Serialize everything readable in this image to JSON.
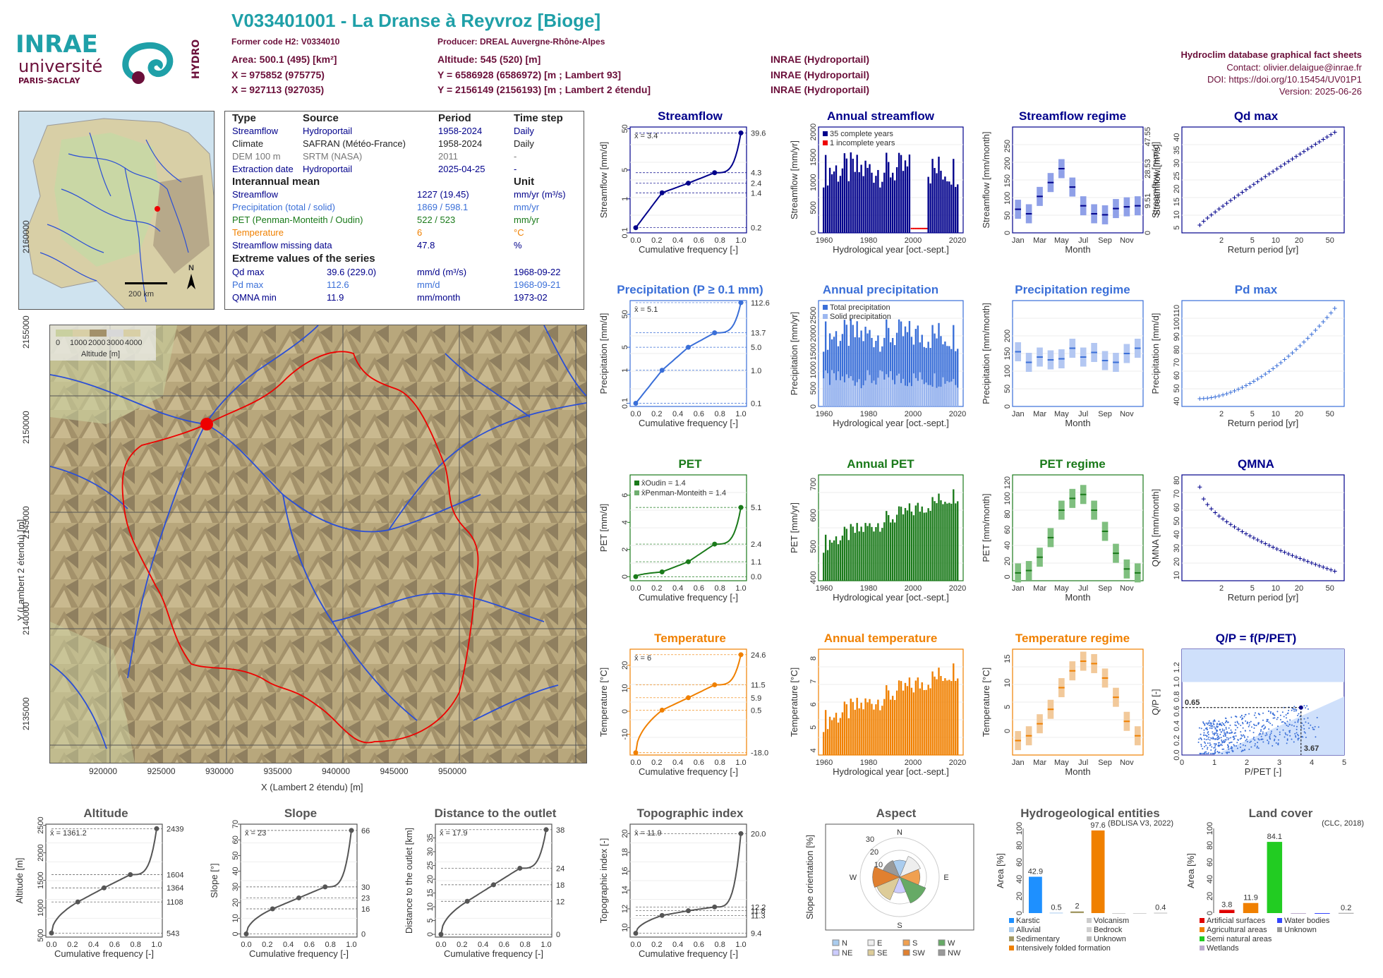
{
  "header": {
    "title": "V033401001 - La Dranse à Reyvroz [Bioge]",
    "former_code": "Former code H2: V0334010",
    "producer": "Producer: DREAL Auvergne-Rhône-Alpes",
    "area": "Area: 500.1 (495) [km²]",
    "altitude": "Altitude: 545 (520) [m]",
    "x93": "X = 975852 (975775)",
    "y93": "Y = 6586928 (6586972) [m ; Lambert 93]",
    "x2e": "X = 927113 (927035)",
    "y2e": "Y = 2156149 (2156193) [m ; Lambert 2 étendu]",
    "src1": "INRAE (Hydroportail)",
    "src2": "INRAE (Hydroportail)",
    "src3": "INRAE (Hydroportail)",
    "db": "Hydroclim database graphical fact sheets",
    "contact": "Contact: olivier.delaigue@inrae.fr",
    "doi": "DOI: https://doi.org/10.15454/UV01P1",
    "version": "Version: 2025-06-26"
  },
  "logos": {
    "inrae": "INRAE",
    "universite": "université",
    "paris_saclay": "PARIS-SACLAY",
    "hydro": "HYDRO"
  },
  "colors": {
    "streamflow": "#00008b",
    "precip": "#3a6fd8",
    "pet": "#1a7a1a",
    "temp": "#f08000",
    "maroon": "#6b0f3a",
    "teal": "#1fa0a8",
    "grey": "#555555"
  },
  "info": {
    "h_type": "Type",
    "h_source": "Source",
    "h_period": "Period",
    "h_step": "Time step",
    "rows": [
      {
        "type": "Streamflow",
        "source": "Hydroportail",
        "period": "1958-2024",
        "step": "Daily",
        "color": "#00008b"
      },
      {
        "type": "Climate",
        "source": "SAFRAN (Météo-France)",
        "period": "1958-2024",
        "step": "Daily",
        "color": "#222222"
      },
      {
        "type": "DEM 100 m",
        "source": "SRTM (NASA)",
        "period": "2011",
        "step": "-",
        "color": "#777777"
      },
      {
        "type": "Extraction date",
        "source": "Hydroportail",
        "period": "2025-04-25",
        "step": "-",
        "color": "#00008b"
      }
    ],
    "h_inter": "Interannual mean",
    "h_unit": "Unit",
    "inter": [
      {
        "name": "Streamflow",
        "value": "1227 (19.45)",
        "unit": "mm/yr (m³/s)",
        "color": "#00008b"
      },
      {
        "name": "Precipitation (total / solid)",
        "value": "1869 / 598.1",
        "unit": "mm/yr",
        "color": "#3a6fd8"
      },
      {
        "name": "PET (Penman-Monteith / Oudin)",
        "value": "522 / 523",
        "unit": "mm/yr",
        "color": "#1a7a1a"
      },
      {
        "name": "Temperature",
        "value": "6",
        "unit": "°C",
        "color": "#f08000"
      },
      {
        "name": "Streamflow missing data",
        "value": "47.8",
        "unit": "%",
        "color": "#00008b"
      }
    ],
    "h_extreme": "Extreme values of the series",
    "extreme": [
      {
        "name": "Qd max",
        "value": "39.6 (229.0)",
        "unit": "mm/d (m³/s)",
        "date": "1968-09-22",
        "color": "#00008b"
      },
      {
        "name": "Pd max",
        "value": "112.6",
        "unit": "mm/d",
        "date": "1968-09-21",
        "color": "#3a6fd8"
      },
      {
        "name": "QMNA min",
        "value": "11.9",
        "unit": "mm/month",
        "date": "1973-02",
        "color": "#00008b"
      }
    ]
  },
  "france_map": {
    "scale": "200 km",
    "north": "N"
  },
  "basin_map": {
    "legend_title": "Altitude [m]",
    "legend_ticks": [
      "0",
      "1000",
      "2000",
      "3000",
      "4000"
    ],
    "xlabel": "X (Lambert 2 étendu) [m]",
    "ylabel": "Y (Lambert 2 étendu) [m]",
    "xticks": [
      "920000",
      "925000",
      "930000",
      "935000",
      "940000",
      "945000",
      "950000"
    ],
    "yticks": [
      "2135000",
      "2140000",
      "2145000",
      "2150000",
      "2155000",
      "2160000"
    ]
  },
  "chart_data": [
    {
      "id": "streamflow_cdf",
      "type": "line",
      "title": "Streamflow",
      "xlabel": "Cumulative frequency [-]",
      "ylabel": "Streamflow [mm/d]",
      "mean_label": "x̄ = 3.4",
      "scale": "log",
      "ylim": [
        0.15,
        55
      ],
      "yticks": [
        "0.1",
        "1",
        "5",
        "50"
      ],
      "right_labels": [
        "39.6",
        "4.3",
        "2.4",
        "1.4",
        "0.2"
      ],
      "right_values": [
        39.6,
        4.3,
        2.4,
        1.4,
        0.2
      ],
      "points": [
        [
          0,
          0.2
        ],
        [
          0.25,
          1.4
        ],
        [
          0.5,
          2.4
        ],
        [
          0.75,
          4.3
        ],
        [
          1,
          39.6
        ]
      ],
      "color": "#00008b"
    },
    {
      "id": "annual_streamflow",
      "type": "bar",
      "title": "Annual streamflow",
      "xlabel": "Hydrological year [oct.-sept.]",
      "ylabel": "Streamflow [mm/yr]",
      "ylim": [
        0,
        2100
      ],
      "yticks": [
        "0",
        "500",
        "1000",
        "1500",
        "2000"
      ],
      "legend": [
        "35 complete years",
        "1 incomplete years"
      ],
      "color": "#00008b"
    },
    {
      "id": "streamflow_regime",
      "type": "box",
      "title": "Streamflow regime",
      "xlabel": "Month",
      "ylabel": "Streamflow [mm/month]",
      "right_ylabel": "Streamflow [m³/s]",
      "ylim": [
        0,
        305
      ],
      "yticks": [
        "0",
        "50",
        "100",
        "150",
        "200",
        "250"
      ],
      "right_ticks": [
        "0",
        "9.51",
        "28.53",
        "47.55"
      ],
      "months": [
        "Jan",
        "Mar",
        "May",
        "Jul",
        "Sep",
        "Nov"
      ],
      "medians": [
        68,
        55,
        105,
        145,
        185,
        132,
        78,
        55,
        52,
        70,
        75,
        78
      ],
      "color": "#00008b"
    },
    {
      "id": "qd_max",
      "type": "scatter",
      "title": "Qd max",
      "xlabel": "Return period [yr]",
      "ylabel": "Streamflow [mm/d]",
      "yticks": [
        "5",
        "10",
        "15",
        "20",
        "25",
        "30",
        "35",
        "40"
      ],
      "xticks": [
        "2",
        "5",
        "10",
        "20",
        "50"
      ],
      "ylim": [
        3,
        44
      ],
      "color": "#00008b"
    },
    {
      "id": "precip_cdf",
      "type": "line",
      "title": "Precipitation (P ≥ 0.1 mm)",
      "xlabel": "Cumulative frequency [-]",
      "ylabel": "Precipitation [mm/d]",
      "mean_label": "x̄ = 5.1",
      "scale": "log",
      "ylim": [
        0.08,
        130
      ],
      "yticks": [
        "0.1",
        "1",
        "5",
        "50"
      ],
      "right_labels": [
        "112.6",
        "13.7",
        "5.0",
        "1.0",
        "0.1"
      ],
      "right_values": [
        112.6,
        13.7,
        5.0,
        1.0,
        0.1
      ],
      "points": [
        [
          0,
          0.1
        ],
        [
          0.25,
          1.0
        ],
        [
          0.5,
          5.0
        ],
        [
          0.75,
          13.7
        ],
        [
          1,
          112.6
        ]
      ],
      "color": "#3a6fd8"
    },
    {
      "id": "annual_precip",
      "type": "bar",
      "title": "Annual precipitation",
      "xlabel": "Hydrological year [oct.-sept.]",
      "ylabel": "Precipitation [mm/yr]",
      "ylim": [
        0,
        2900
      ],
      "yticks": [
        "0",
        "500",
        "1000",
        "1500",
        "2000",
        "2500"
      ],
      "legend": [
        "Total precipitation",
        "Solid precipitation"
      ],
      "color": "#3a6fd8"
    },
    {
      "id": "precip_regime",
      "type": "box",
      "title": "Precipitation regime",
      "xlabel": "Month",
      "ylabel": "Precipitation [mm/month]",
      "ylim": [
        0,
        300
      ],
      "yticks": [
        "0",
        "50",
        "100",
        "150",
        "200"
      ],
      "months": [
        "Jan",
        "Mar",
        "May",
        "Jul",
        "Sep",
        "Nov"
      ],
      "medians": [
        155,
        125,
        140,
        132,
        135,
        165,
        140,
        153,
        130,
        125,
        150,
        165
      ],
      "color": "#3a6fd8"
    },
    {
      "id": "pd_max",
      "type": "scatter",
      "title": "Pd max",
      "xlabel": "Return period [yr]",
      "ylabel": "Precipitation [mm/d]",
      "yticks": [
        "40",
        "50",
        "60",
        "70",
        "80",
        "90",
        "100",
        "110"
      ],
      "xticks": [
        "2",
        "5",
        "10",
        "20",
        "50"
      ],
      "ylim": [
        36,
        118
      ],
      "color": "#3a6fd8"
    },
    {
      "id": "pet_cdf",
      "type": "line",
      "title": "PET",
      "xlabel": "Cumulative frequency [-]",
      "ylabel": "PET [mm/d]",
      "legend": [
        "x̄Oudin = 1.4",
        "x̄Penman-Monteith = 1.4"
      ],
      "ylim": [
        -0.3,
        7.5
      ],
      "yticks": [
        "0",
        "2",
        "4",
        "6"
      ],
      "right_labels": [
        "5.1",
        "2.4",
        "1.1",
        "0.0"
      ],
      "right_values": [
        5.1,
        2.4,
        1.1,
        0.0
      ],
      "points": [
        [
          0,
          0.0
        ],
        [
          0.25,
          0.35
        ],
        [
          0.5,
          1.1
        ],
        [
          0.75,
          2.4
        ],
        [
          1,
          5.1
        ]
      ],
      "color": "#1a7a1a"
    },
    {
      "id": "annual_pet",
      "type": "bar",
      "title": "Annual PET",
      "xlabel": "Hydrological year [oct.-sept.]",
      "ylabel": "PET [mm/yr]",
      "ylim": [
        390,
        730
      ],
      "yticks": [
        "400",
        "500",
        "600",
        "700"
      ],
      "color": "#1a7a1a"
    },
    {
      "id": "pet_regime",
      "type": "box",
      "title": "PET regime",
      "xlabel": "Month",
      "ylabel": "PET [mm/month]",
      "ylim": [
        -5,
        130
      ],
      "yticks": [
        "0",
        "20",
        "40",
        "60",
        "80",
        "100",
        "120"
      ],
      "months": [
        "Jan",
        "Mar",
        "May",
        "Jul",
        "Sep",
        "Nov"
      ],
      "medians": [
        5,
        8,
        25,
        50,
        85,
        100,
        105,
        85,
        58,
        30,
        10,
        5
      ],
      "color": "#1a7a1a"
    },
    {
      "id": "qmna",
      "type": "scatter",
      "title": "QMNA",
      "xlabel": "Return period [yr]",
      "ylabel": "QMNA [mm/month]",
      "yticks": [
        "10",
        "20",
        "30",
        "40",
        "50",
        "60",
        "70",
        "80"
      ],
      "xticks": [
        "2",
        "5",
        "10",
        "20",
        "50"
      ],
      "ylim": [
        6,
        84
      ],
      "color": "#00008b"
    },
    {
      "id": "temp_cdf",
      "type": "line",
      "title": "Temperature",
      "xlabel": "Cumulative frequency [-]",
      "ylabel": "Temperature [°C]",
      "mean_label": "x̄ = 6",
      "ylim": [
        -19,
        27
      ],
      "yticks": [
        "-10",
        "0",
        "10",
        "20"
      ],
      "right_labels": [
        "24.6",
        "11.5",
        "5.9",
        "0.5",
        "-18.0"
      ],
      "right_values": [
        24.6,
        11.5,
        5.9,
        0.5,
        -18.0
      ],
      "points": [
        [
          0,
          -18.0
        ],
        [
          0.25,
          0.5
        ],
        [
          0.5,
          5.9
        ],
        [
          0.75,
          11.5
        ],
        [
          1,
          24.6
        ]
      ],
      "color": "#f08000"
    },
    {
      "id": "annual_temp",
      "type": "bar",
      "title": "Annual temperature",
      "xlabel": "Hydrological year [oct.-sept.]",
      "ylabel": "Temperature [°C]",
      "ylim": [
        3.8,
        8.4
      ],
      "yticks": [
        "4",
        "5",
        "6",
        "7",
        "8"
      ],
      "color": "#f08000"
    },
    {
      "id": "temp_regime",
      "type": "box",
      "title": "Temperature regime",
      "xlabel": "Month",
      "ylabel": "Temperature [°C]",
      "ylim": [
        -5,
        17
      ],
      "yticks": [
        "0",
        "5",
        "10",
        "15"
      ],
      "months": [
        "Jan",
        "Mar",
        "May",
        "Jul",
        "Sep",
        "Nov"
      ],
      "medians": [
        -2,
        -1,
        1.5,
        4.5,
        9,
        12.5,
        14.5,
        14,
        11,
        7,
        2,
        -1
      ],
      "color": "#f08000"
    },
    {
      "id": "qp_ppet",
      "type": "scatter",
      "title": "Q/P = f(P/PET)",
      "xlabel": "P/PET [-]",
      "ylabel": "Q/P [-]",
      "xticks": [
        "0",
        "1",
        "2",
        "3",
        "4",
        "5"
      ],
      "yticks": [
        "0.0",
        "0.2",
        "0.4",
        "0.6",
        "0.8",
        "1.0",
        "1.2"
      ],
      "xlim": [
        0,
        5
      ],
      "ylim": [
        0,
        1.45
      ],
      "point": [
        3.67,
        0.65
      ],
      "point_labels": [
        "0.65",
        "3.67"
      ],
      "color": "#3a6fd8"
    },
    {
      "id": "altitude_cdf",
      "type": "line",
      "title": "Altitude",
      "xlabel": "Cumulative frequency [-]",
      "ylabel": "Altitude [m]",
      "mean_label": "x̄ = 1361.2",
      "ylim": [
        470,
        2520
      ],
      "yticks": [
        "500",
        "1000",
        "1500",
        "2000",
        "2500"
      ],
      "right_labels": [
        "2439",
        "1604",
        "1364",
        "1108",
        "543"
      ],
      "right_values": [
        2439,
        1604,
        1364,
        1108,
        543
      ],
      "points": [
        [
          0,
          543
        ],
        [
          0.25,
          1108
        ],
        [
          0.5,
          1364
        ],
        [
          0.75,
          1604
        ],
        [
          1,
          2439
        ]
      ],
      "color": "#555555"
    },
    {
      "id": "slope_cdf",
      "type": "line",
      "title": "Slope",
      "xlabel": "Cumulative frequency [-]",
      "ylabel": "Slope [°]",
      "mean_label": "x̄ = 23",
      "ylim": [
        -2,
        70
      ],
      "yticks": [
        "0",
        "10",
        "20",
        "30",
        "40",
        "50",
        "60",
        "70"
      ],
      "right_labels": [
        "66",
        "30",
        "23",
        "16",
        "0"
      ],
      "right_values": [
        66,
        30,
        23,
        16,
        0
      ],
      "points": [
        [
          0,
          0
        ],
        [
          0.25,
          16
        ],
        [
          0.5,
          23
        ],
        [
          0.75,
          30
        ],
        [
          1,
          66
        ]
      ],
      "color": "#555555"
    },
    {
      "id": "distance_cdf",
      "type": "line",
      "title": "Distance to the outlet",
      "xlabel": "Cumulative frequency [-]",
      "ylabel": "Distance to the outlet [km]",
      "mean_label": "x̄ = 17.9",
      "ylim": [
        -1,
        40
      ],
      "yticks": [
        "0",
        "5",
        "10",
        "15",
        "20",
        "25",
        "30",
        "35"
      ],
      "right_labels": [
        "38",
        "24",
        "18",
        "12",
        "0"
      ],
      "right_values": [
        38,
        24,
        18,
        12,
        0
      ],
      "points": [
        [
          0,
          0
        ],
        [
          0.25,
          12
        ],
        [
          0.5,
          18
        ],
        [
          0.75,
          24
        ],
        [
          1,
          38
        ]
      ],
      "color": "#555555"
    },
    {
      "id": "topo_cdf",
      "type": "line",
      "title": "Topographic index",
      "xlabel": "Cumulative frequency [-]",
      "ylabel": "Topographic index [-]",
      "mean_label": "x̄ = 11.9",
      "ylim": [
        9,
        21
      ],
      "yticks": [
        "10",
        "12",
        "14",
        "16",
        "18",
        "20"
      ],
      "right_labels": [
        "20.0",
        "12.2",
        "11.8",
        "11.3",
        "9.4"
      ],
      "right_values": [
        20.0,
        12.2,
        11.8,
        11.3,
        9.4
      ],
      "points": [
        [
          0,
          9.4
        ],
        [
          0.25,
          11.3
        ],
        [
          0.5,
          11.8
        ],
        [
          0.75,
          12.2
        ],
        [
          1,
          20.0
        ]
      ],
      "color": "#555555"
    },
    {
      "id": "aspect",
      "type": "pie",
      "title": "Aspect",
      "ylabel": "Slope orientation [%]",
      "ticks": [
        "10",
        "20",
        "30"
      ],
      "dirs": [
        "N",
        "E",
        "S",
        "W"
      ],
      "legend": [
        "N",
        "E",
        "S",
        "W",
        "NE",
        "SE",
        "SW",
        "NW"
      ]
    },
    {
      "id": "hydrogeo",
      "type": "bar",
      "title": "Hydrogeological entities",
      "ylabel": "Area [%]",
      "source": "(BDLISA V3, 2022)",
      "ylim": [
        0,
        100
      ],
      "yticks": [
        "0",
        "20",
        "40",
        "60",
        "80",
        "100"
      ],
      "categories": [
        "Karstic",
        "Alluvial",
        "Sedimentary",
        "Intensively folded formation",
        "Volcanism",
        "Bedrock",
        "Unknown"
      ],
      "values": [
        42.9,
        0.5,
        2,
        97.6,
        0,
        0,
        0.4
      ],
      "value_labels": [
        "42.9",
        "0.5",
        "2",
        "97.6",
        "",
        "",
        "0.4"
      ]
    },
    {
      "id": "landcover",
      "type": "bar",
      "title": "Land cover",
      "ylabel": "Area [%]",
      "source": "(CLC, 2018)",
      "ylim": [
        0,
        100
      ],
      "yticks": [
        "0",
        "20",
        "40",
        "60",
        "80",
        "100"
      ],
      "categories": [
        "Artificial surfaces",
        "Agricultural areas",
        "Semi natural areas",
        "Wetlands",
        "Water bodies",
        "Unknown"
      ],
      "values": [
        3.8,
        11.9,
        84.1,
        0,
        0,
        0.2
      ],
      "value_labels": [
        "3.8",
        "11.9",
        "84.1",
        "",
        "",
        "0.2"
      ]
    }
  ]
}
